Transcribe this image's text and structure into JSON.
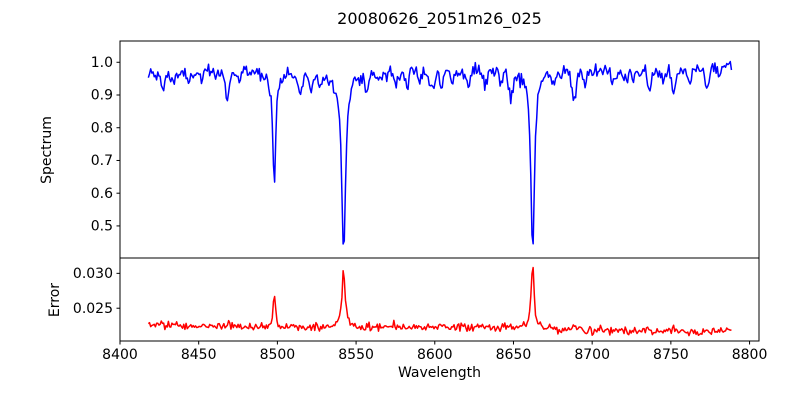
{
  "title": "20080626_2051m26_025",
  "labels": {
    "xlabel": "Wavelength",
    "ylabel_spectrum": "Spectrum",
    "ylabel_error": "Error"
  },
  "colors": {
    "spectrum_line": "#0000ff",
    "error_line": "#ff0000",
    "axis": "#000000",
    "background": "#ffffff",
    "text": "#000000"
  },
  "chart_data": [
    {
      "type": "line",
      "name": "spectrum",
      "title": "20080626_2051m26_025",
      "ylabel": "Spectrum",
      "color": "#0000ff",
      "grid": false,
      "legend": null,
      "xlim": [
        8400,
        8806
      ],
      "ylim": [
        0.402,
        1.065
      ],
      "y_ticks": [
        0.5,
        0.6,
        0.7,
        0.8,
        0.9,
        1.0
      ],
      "y_tick_labels": [
        "0.5",
        "0.6",
        "0.7",
        "0.8",
        "0.9",
        "1.0"
      ],
      "x_data_range": [
        8418,
        8789
      ],
      "x_step": 0.75,
      "noise_sigma": 0.0105,
      "noise_seed": 1234,
      "continuum_anchors": [
        [
          8418,
          0.96
        ],
        [
          8450,
          0.968
        ],
        [
          8490,
          0.972
        ],
        [
          8520,
          0.962
        ],
        [
          8560,
          0.968
        ],
        [
          8600,
          0.97
        ],
        [
          8640,
          0.972
        ],
        [
          8680,
          0.97
        ],
        [
          8720,
          0.968
        ],
        [
          8755,
          0.972
        ],
        [
          8789,
          0.99
        ]
      ],
      "deep_lines_lorentzian": [
        {
          "center": 8498.0,
          "depth": 0.355,
          "width": 1.05
        },
        {
          "center": 8542.1,
          "depth": 0.545,
          "width": 1.55
        },
        {
          "center": 8662.2,
          "depth": 0.55,
          "width": 1.4
        }
      ],
      "weak_lines_gaussian": [
        {
          "center": 8427.2,
          "depth": 0.045,
          "sigma": 1.2
        },
        {
          "center": 8434.0,
          "depth": 0.028,
          "sigma": 0.9
        },
        {
          "center": 8443.5,
          "depth": 0.035,
          "sigma": 1.0
        },
        {
          "center": 8452.0,
          "depth": 0.024,
          "sigma": 0.9
        },
        {
          "center": 8461.0,
          "depth": 0.022,
          "sigma": 0.8
        },
        {
          "center": 8468.3,
          "depth": 0.085,
          "sigma": 1.1
        },
        {
          "center": 8476.0,
          "depth": 0.028,
          "sigma": 0.9
        },
        {
          "center": 8514.2,
          "depth": 0.062,
          "sigma": 1.3
        },
        {
          "center": 8521.5,
          "depth": 0.038,
          "sigma": 1.0
        },
        {
          "center": 8527.0,
          "depth": 0.032,
          "sigma": 1.0
        },
        {
          "center": 8556.8,
          "depth": 0.05,
          "sigma": 1.1
        },
        {
          "center": 8565.0,
          "depth": 0.028,
          "sigma": 0.9
        },
        {
          "center": 8575.2,
          "depth": 0.033,
          "sigma": 1.0
        },
        {
          "center": 8582.3,
          "depth": 0.04,
          "sigma": 1.0
        },
        {
          "center": 8590.0,
          "depth": 0.028,
          "sigma": 0.9
        },
        {
          "center": 8598.0,
          "depth": 0.05,
          "sigma": 1.2
        },
        {
          "center": 8604.3,
          "depth": 0.05,
          "sigma": 1.0
        },
        {
          "center": 8611.0,
          "depth": 0.038,
          "sigma": 0.9
        },
        {
          "center": 8621.2,
          "depth": 0.048,
          "sigma": 1.0
        },
        {
          "center": 8632.0,
          "depth": 0.03,
          "sigma": 0.9
        },
        {
          "center": 8642.0,
          "depth": 0.032,
          "sigma": 0.9
        },
        {
          "center": 8648.4,
          "depth": 0.068,
          "sigma": 1.2
        },
        {
          "center": 8675.0,
          "depth": 0.045,
          "sigma": 1.0
        },
        {
          "center": 8688.6,
          "depth": 0.088,
          "sigma": 1.4
        },
        {
          "center": 8696.0,
          "depth": 0.028,
          "sigma": 0.9
        },
        {
          "center": 8713.2,
          "depth": 0.042,
          "sigma": 1.0
        },
        {
          "center": 8722.0,
          "depth": 0.028,
          "sigma": 0.9
        },
        {
          "center": 8736.3,
          "depth": 0.062,
          "sigma": 1.1
        },
        {
          "center": 8745.0,
          "depth": 0.038,
          "sigma": 0.9
        },
        {
          "center": 8751.8,
          "depth": 0.07,
          "sigma": 1.1
        },
        {
          "center": 8762.1,
          "depth": 0.042,
          "sigma": 0.9
        },
        {
          "center": 8772.9,
          "depth": 0.058,
          "sigma": 1.1
        },
        {
          "center": 8781.0,
          "depth": 0.032,
          "sigma": 0.9
        }
      ]
    },
    {
      "type": "line",
      "name": "error",
      "ylabel": "Error",
      "xlabel": "Wavelength",
      "color": "#ff0000",
      "grid": false,
      "legend": null,
      "xlim": [
        8400,
        8806
      ],
      "ylim": [
        0.0203,
        0.0322
      ],
      "x_ticks": [
        8400,
        8450,
        8500,
        8550,
        8600,
        8650,
        8700,
        8750,
        8800
      ],
      "x_tick_labels": [
        "8400",
        "8450",
        "8500",
        "8550",
        "8600",
        "8650",
        "8700",
        "8750",
        "8800"
      ],
      "y_ticks": [
        0.025,
        0.03
      ],
      "y_tick_labels": [
        "0.025",
        "0.030"
      ],
      "x_data_range": [
        8418,
        8789
      ],
      "x_step": 0.75,
      "noise_sigma": 0.00028,
      "noise_seed": 777,
      "baseline_anchors": [
        [
          8418,
          0.02255
        ],
        [
          8470,
          0.02235
        ],
        [
          8530,
          0.02228
        ],
        [
          8600,
          0.02226
        ],
        [
          8660,
          0.0222
        ],
        [
          8700,
          0.0219
        ],
        [
          8740,
          0.02168
        ],
        [
          8770,
          0.02172
        ],
        [
          8789,
          0.0218
        ]
      ],
      "peaks_lorentzian": [
        {
          "center": 8427.2,
          "height": 0.0005,
          "width": 1.0
        },
        {
          "center": 8468.3,
          "height": 0.0007,
          "width": 0.9
        },
        {
          "center": 8498.0,
          "height": 0.005,
          "width": 0.85
        },
        {
          "center": 8542.1,
          "height": 0.0086,
          "width": 1.15
        },
        {
          "center": 8604.3,
          "height": 0.0004,
          "width": 0.8
        },
        {
          "center": 8662.2,
          "height": 0.0096,
          "width": 1.0
        },
        {
          "center": 8688.6,
          "height": 0.0007,
          "width": 0.9
        },
        {
          "center": 8736.3,
          "height": 0.0009,
          "width": 0.6
        },
        {
          "center": 8751.8,
          "height": 0.0005,
          "width": 0.8
        }
      ]
    }
  ]
}
